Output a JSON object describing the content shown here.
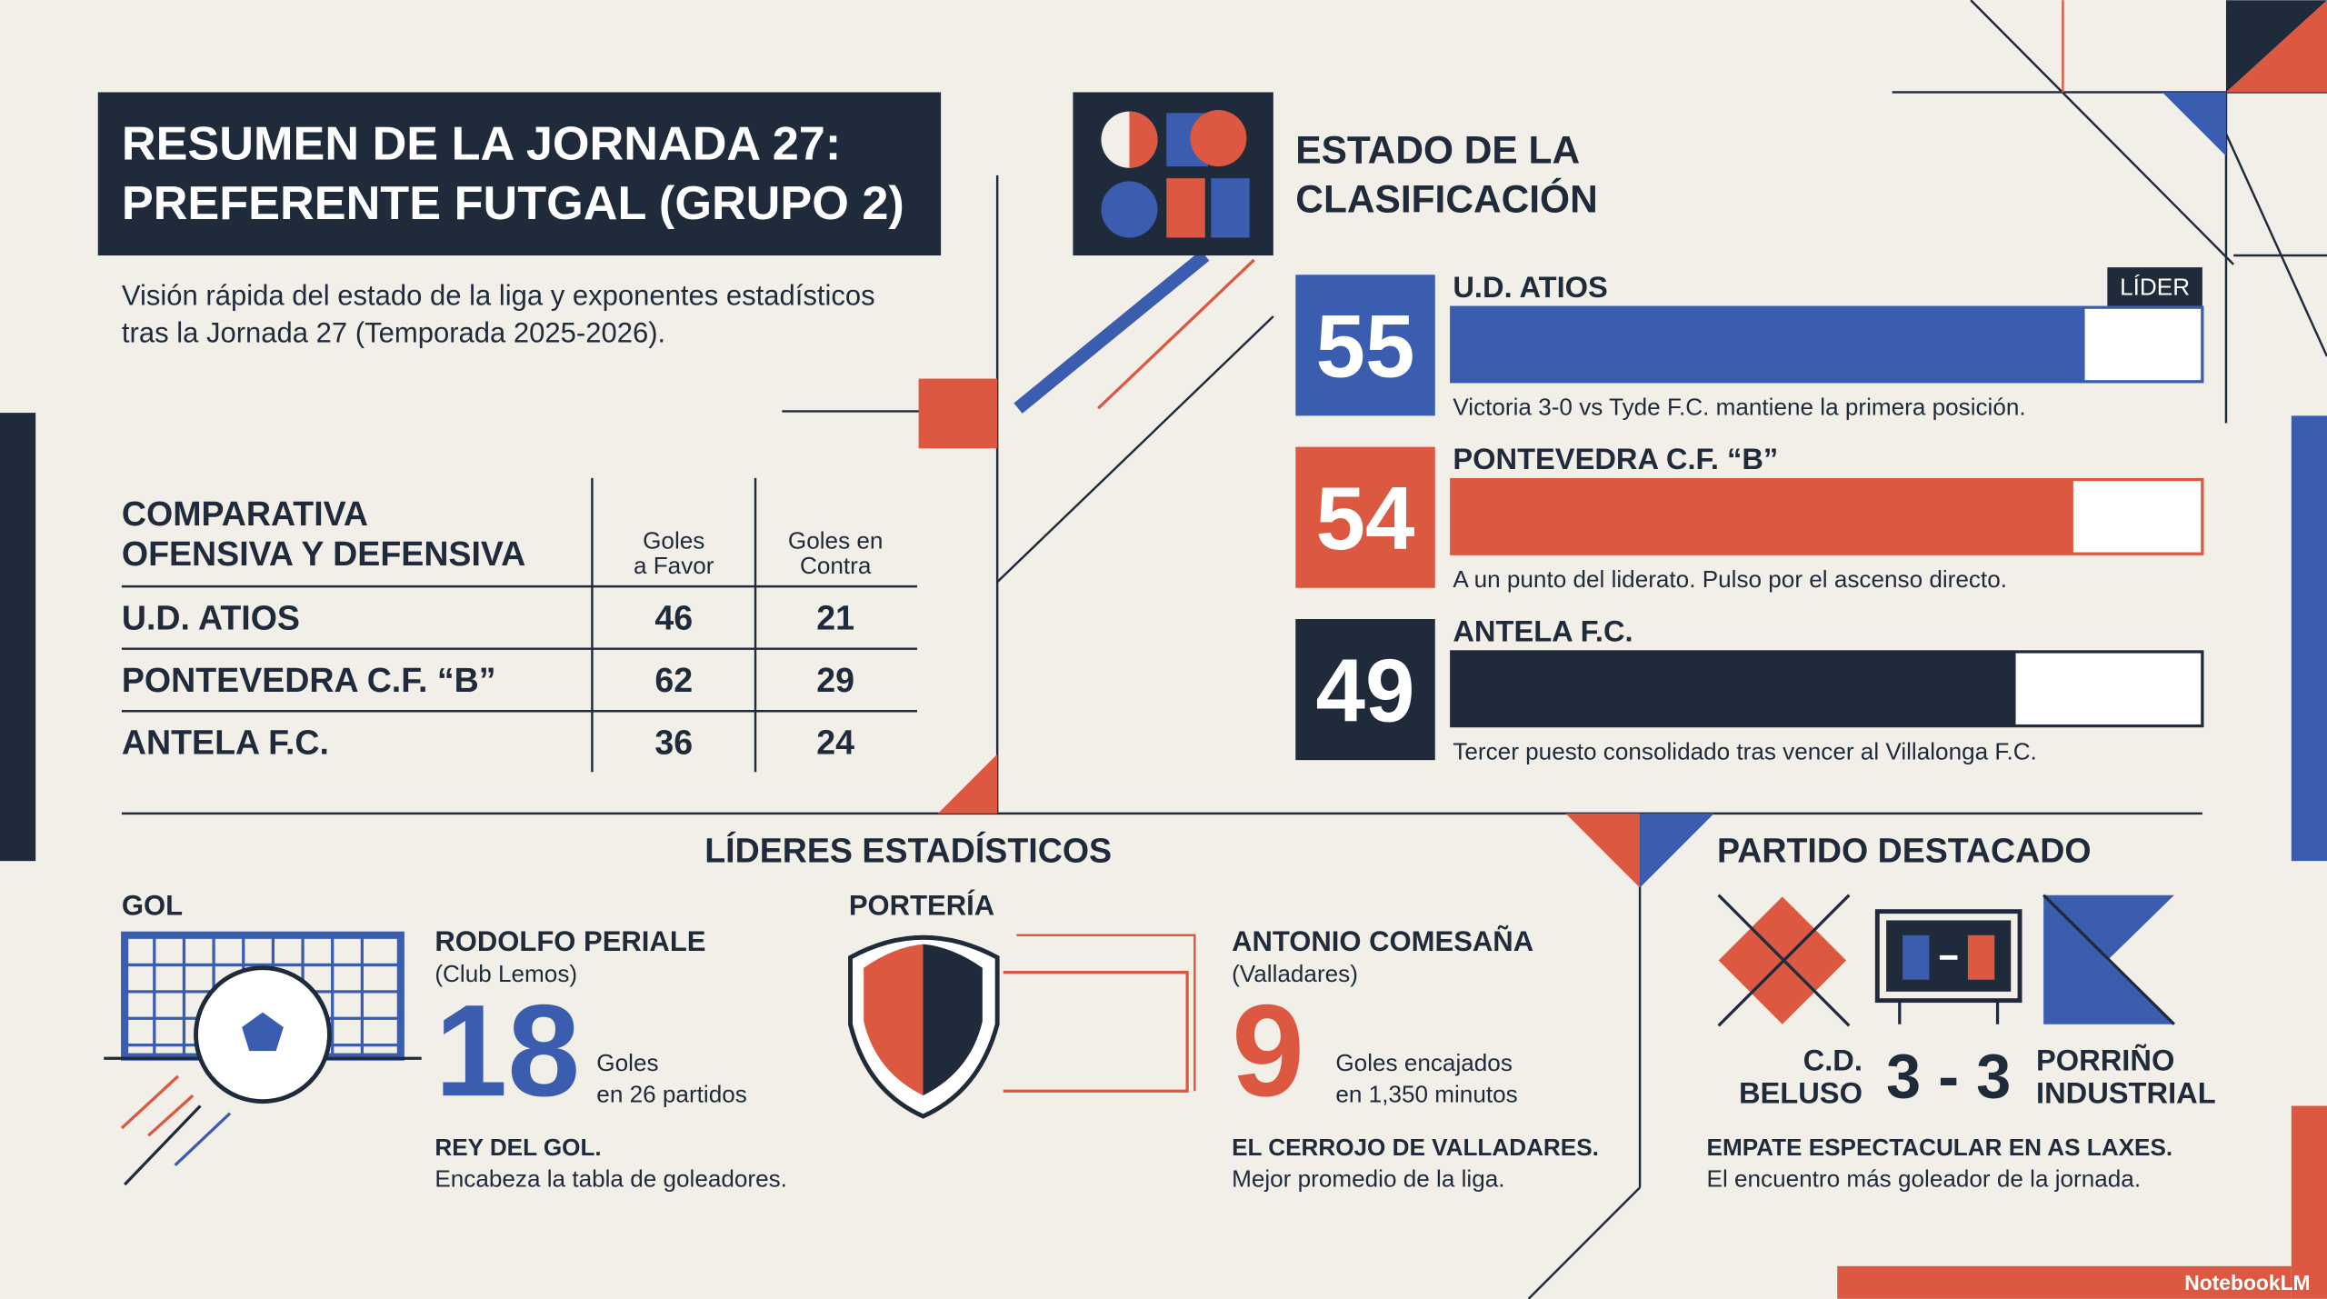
{
  "header": {
    "title_lines": [
      "RESUMEN DE LA JORNADA 27:",
      "PREFERENTE FUTGAL (GRUPO 2)"
    ],
    "subtitle_lines": [
      "Visión rápida del estado de la liga y exponentes estadísticos",
      "tras la Jornada 27 (Temporada 2025-2026)."
    ]
  },
  "comparison": {
    "title_lines": [
      "COMPARATIVA",
      "OFENSIVA Y DEFENSIVA"
    ],
    "columns": [
      [
        "Goles",
        "a Favor"
      ],
      [
        "Goles en",
        "Contra"
      ]
    ],
    "rows": [
      {
        "team": "U.D. ATIOS",
        "goals_for": 46,
        "goals_against": 21
      },
      {
        "team": "PONTEVEDRA C.F. “B”",
        "goals_for": 62,
        "goals_against": 29
      },
      {
        "team": "ANTELA F.C.",
        "goals_for": 36,
        "goals_against": 24
      }
    ]
  },
  "standings": {
    "title_lines": [
      "ESTADO DE LA",
      "CLASIFICACIÓN"
    ],
    "leader_badge": "LÍDER",
    "teams": [
      {
        "name": "U.D. ATIOS",
        "points": 55,
        "note": "Victoria 3-0 vs Tyde F.C. mantiene la primera posición.",
        "color": "#3a5db0"
      },
      {
        "name": "PONTEVEDRA C.F. “B”",
        "points": 54,
        "note": "A un punto del liderato. Pulso por el ascenso directo.",
        "color": "#dc5840"
      },
      {
        "name": "ANTELA F.C.",
        "points": 49,
        "note": "Tercer puesto consolidado tras vencer al Villalonga F.C.",
        "color": "#1f2a3a"
      }
    ]
  },
  "leaders": {
    "title": "LÍDERES ESTADÍSTICOS",
    "scorer": {
      "section": "GOL",
      "name": "RODOLFO PERIALE",
      "club": "(Club Lemos)",
      "value": 18,
      "unit_lines": [
        "Goles",
        "en 26 partidos"
      ],
      "headline": "REY DEL GOL.",
      "caption": "Encabeza la tabla de goleadores."
    },
    "keeper": {
      "section": "PORTERÍA",
      "name": "ANTONIO COMESAÑA",
      "club": "(Valladares)",
      "value": 9,
      "unit_lines": [
        "Goles encajados",
        "en 1,350 minutos"
      ],
      "headline": "EL CERROJO DE VALLADARES.",
      "caption": "Mejor promedio de la liga."
    }
  },
  "featured_match": {
    "title": "PARTIDO DESTACADO",
    "home_lines": [
      "C.D.",
      "BELUSO"
    ],
    "score": "3 - 3",
    "away_lines": [
      "PORRIÑO",
      "INDUSTRIAL"
    ],
    "headline": "EMPATE ESPECTACULAR EN AS LAXES.",
    "caption": "El encuentro más goleador de la jornada."
  },
  "footer": {
    "brand": "NotebookLM"
  }
}
